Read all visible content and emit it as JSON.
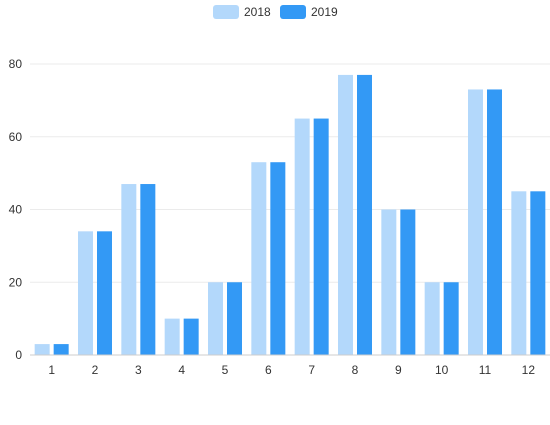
{
  "chart_data": {
    "type": "bar",
    "categories": [
      "1",
      "2",
      "3",
      "4",
      "5",
      "6",
      "7",
      "8",
      "9",
      "10",
      "11",
      "12"
    ],
    "series": [
      {
        "name": "2018",
        "color": "#b3d8fb",
        "values": [
          3,
          34,
          47,
          10,
          20,
          53,
          65,
          77,
          40,
          20,
          73,
          45
        ]
      },
      {
        "name": "2019",
        "color": "#3399f5",
        "values": [
          3,
          34,
          47,
          10,
          20,
          53,
          65,
          77,
          40,
          20,
          73,
          45
        ]
      }
    ],
    "y_ticks": [
      0,
      20,
      40,
      60,
      80
    ],
    "ylim": [
      0,
      80
    ],
    "grid": true,
    "grid_color": "#ebebeb",
    "axis_color": "#cccccc",
    "legend_position": "top-center"
  }
}
